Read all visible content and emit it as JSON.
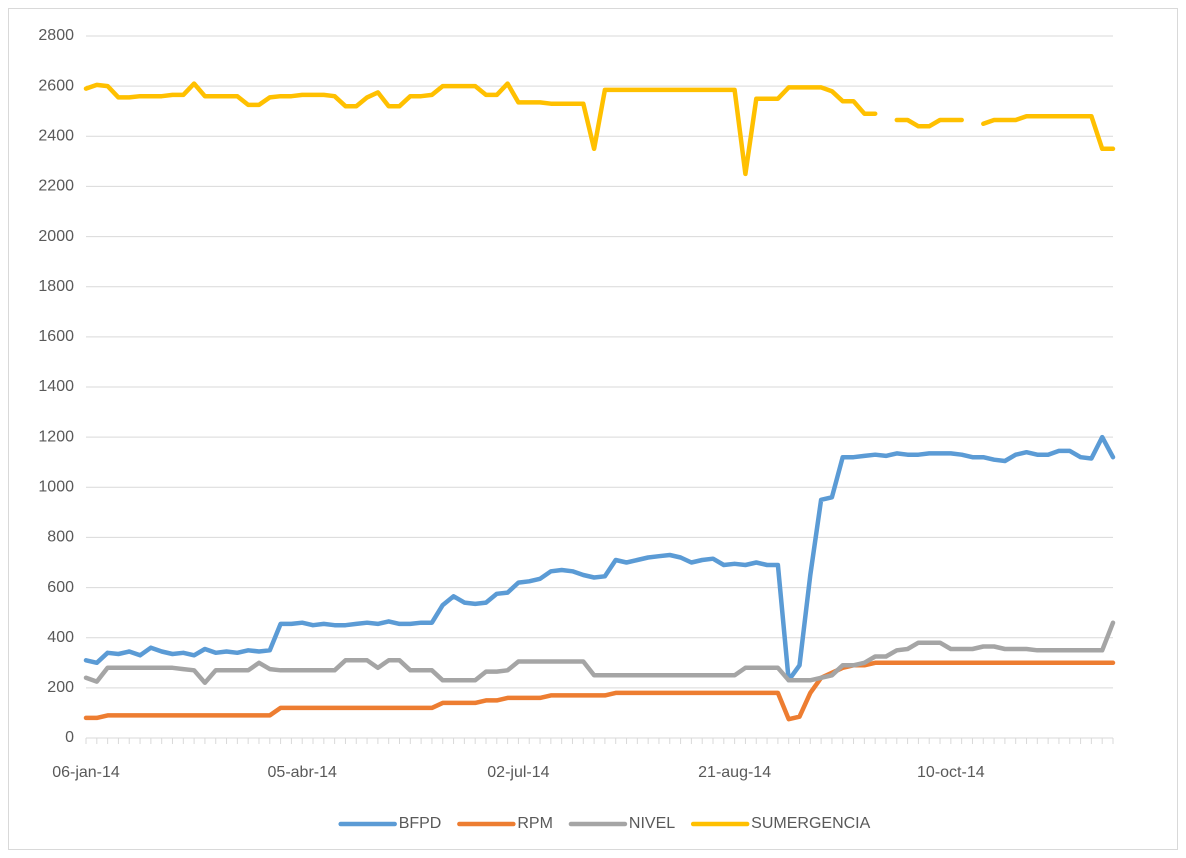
{
  "chart_data": {
    "type": "line",
    "categories": [
      "06-jan-14",
      null,
      null,
      null,
      null,
      null,
      null,
      null,
      null,
      null,
      null,
      null,
      null,
      null,
      null,
      null,
      null,
      null,
      null,
      null,
      "05-abr-14",
      null,
      null,
      null,
      null,
      null,
      null,
      null,
      null,
      null,
      null,
      null,
      null,
      null,
      null,
      null,
      null,
      null,
      null,
      null,
      "02-jul-14",
      null,
      null,
      null,
      null,
      null,
      null,
      null,
      null,
      null,
      null,
      null,
      null,
      null,
      null,
      null,
      null,
      null,
      null,
      null,
      "21-aug-14",
      null,
      null,
      null,
      null,
      null,
      null,
      null,
      null,
      null,
      null,
      null,
      null,
      null,
      null,
      null,
      null,
      null,
      null,
      null,
      "10-oct-14",
      null,
      null,
      null,
      null,
      null,
      null,
      null,
      null,
      null,
      null,
      null,
      null,
      null,
      null,
      null
    ],
    "series": [
      {
        "name": "BFPD",
        "color": "#5b9bd5",
        "values": [
          310,
          300,
          340,
          335,
          345,
          330,
          360,
          345,
          335,
          340,
          330,
          355,
          340,
          345,
          340,
          350,
          345,
          350,
          455,
          455,
          460,
          450,
          455,
          450,
          450,
          455,
          460,
          455,
          465,
          455,
          455,
          460,
          460,
          530,
          565,
          540,
          535,
          540,
          575,
          580,
          620,
          625,
          635,
          665,
          670,
          665,
          650,
          640,
          645,
          710,
          700,
          710,
          720,
          725,
          730,
          720,
          700,
          710,
          715,
          690,
          695,
          690,
          700,
          690,
          690,
          230,
          290,
          650,
          950,
          960,
          1120,
          1120,
          1125,
          1130,
          1125,
          1135,
          1130,
          1130,
          1135,
          1135,
          1135,
          1130,
          1120,
          1120,
          1110,
          1105,
          1130,
          1140,
          1130,
          1130,
          1145,
          1145,
          1120,
          1115,
          1200,
          1120
        ]
      },
      {
        "name": "RPM",
        "color": "#ed7d31",
        "values": [
          80,
          80,
          90,
          90,
          90,
          90,
          90,
          90,
          90,
          90,
          90,
          90,
          90,
          90,
          90,
          90,
          90,
          90,
          120,
          120,
          120,
          120,
          120,
          120,
          120,
          120,
          120,
          120,
          120,
          120,
          120,
          120,
          120,
          140,
          140,
          140,
          140,
          150,
          150,
          160,
          160,
          160,
          160,
          170,
          170,
          170,
          170,
          170,
          170,
          180,
          180,
          180,
          180,
          180,
          180,
          180,
          180,
          180,
          180,
          180,
          180,
          180,
          180,
          180,
          180,
          75,
          85,
          180,
          240,
          260,
          280,
          290,
          290,
          300,
          300,
          300,
          300,
          300,
          300,
          300,
          300,
          300,
          300,
          300,
          300,
          300,
          300,
          300,
          300,
          300,
          300,
          300,
          300,
          300,
          300,
          300
        ]
      },
      {
        "name": "NIVEL",
        "color": "#a5a5a5",
        "values": [
          240,
          225,
          280,
          280,
          280,
          280,
          280,
          280,
          280,
          275,
          270,
          220,
          270,
          270,
          270,
          270,
          300,
          275,
          270,
          270,
          270,
          270,
          270,
          270,
          310,
          310,
          310,
          280,
          310,
          310,
          270,
          270,
          270,
          230,
          230,
          230,
          230,
          265,
          265,
          270,
          305,
          305,
          305,
          305,
          305,
          305,
          305,
          250,
          250,
          250,
          250,
          250,
          250,
          250,
          250,
          250,
          250,
          250,
          250,
          250,
          250,
          280,
          280,
          280,
          280,
          230,
          230,
          230,
          240,
          250,
          290,
          290,
          300,
          325,
          325,
          350,
          355,
          380,
          380,
          380,
          355,
          355,
          355,
          365,
          365,
          355,
          355,
          355,
          350,
          350,
          350,
          350,
          350,
          350,
          350,
          460
        ]
      },
      {
        "name": "SUMERGENCIA",
        "color": "#ffc000",
        "values": [
          2590,
          2605,
          2600,
          2555,
          2555,
          2560,
          2560,
          2560,
          2565,
          2565,
          2610,
          2560,
          2560,
          2560,
          2560,
          2525,
          2525,
          2555,
          2560,
          2560,
          2565,
          2565,
          2565,
          2560,
          2520,
          2520,
          2555,
          2575,
          2520,
          2520,
          2560,
          2560,
          2565,
          2600,
          2600,
          2600,
          2600,
          2565,
          2565,
          2610,
          2535,
          2535,
          2535,
          2530,
          2530,
          2530,
          2530,
          2350,
          2585,
          2585,
          2585,
          2585,
          2585,
          2585,
          2585,
          2585,
          2585,
          2585,
          2585,
          2585,
          2585,
          2250,
          2550,
          2550,
          2550,
          2595,
          2595,
          2595,
          2595,
          2580,
          2540,
          2540,
          2490,
          2490,
          null,
          2465,
          2465,
          2440,
          2440,
          2465,
          2465,
          2465,
          null,
          2450,
          2465,
          2465,
          2465,
          2480,
          2480,
          2480,
          2480,
          2480,
          2480,
          2480,
          2350,
          2350
        ]
      }
    ],
    "ylim": [
      0,
      2800
    ],
    "yticks": [
      0,
      200,
      400,
      600,
      800,
      1000,
      1200,
      1400,
      1600,
      1800,
      2000,
      2200,
      2400,
      2600,
      2800
    ],
    "grid": true,
    "legend": "bottom"
  }
}
